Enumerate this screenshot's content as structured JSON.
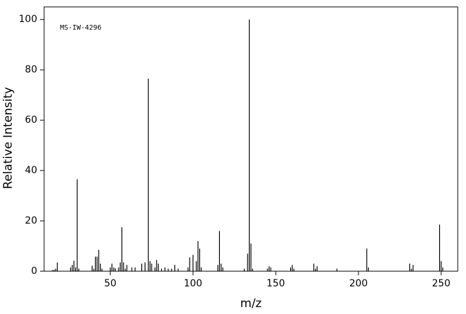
{
  "chart_data": {
    "type": "stem",
    "annotation": "MS-IW-4296",
    "xlabel": "m/z",
    "ylabel": "Relative Intensity",
    "color": "#000000",
    "x": [
      15,
      16,
      17,
      18,
      26,
      27,
      28,
      29,
      30,
      31,
      39,
      40,
      41,
      42,
      43,
      44,
      45,
      50,
      51,
      52,
      53,
      55,
      56,
      57,
      58,
      59,
      60,
      63,
      65,
      69,
      71,
      73,
      74,
      75,
      77,
      78,
      79,
      81,
      83,
      85,
      87,
      89,
      91,
      97,
      98,
      100,
      102,
      103,
      104,
      105,
      115,
      116,
      117,
      118,
      131,
      133,
      134,
      135,
      136,
      145,
      146,
      147,
      159,
      160,
      161,
      173,
      174,
      175,
      187,
      205,
      206,
      231,
      232,
      233,
      249,
      250,
      251
    ],
    "values": [
      0.5,
      0.6,
      1,
      3.5,
      1.5,
      2.5,
      4.2,
      1.5,
      36.5,
      1,
      2.2,
      1,
      5.8,
      5.8,
      8.5,
      3,
      1,
      1.5,
      3,
      1.5,
      1.2,
      1.5,
      3.5,
      17.5,
      3.5,
      1,
      2.5,
      1.5,
      1.5,
      3,
      3.5,
      76.5,
      4,
      3,
      1.5,
      4.5,
      3,
      1,
      1.5,
      1,
      1,
      2.5,
      1,
      1.5,
      5.5,
      6.5,
      4,
      12,
      9,
      1.5,
      2.5,
      16,
      3,
      1.5,
      1,
      7,
      100,
      11,
      1,
      1,
      2,
      1.5,
      1.5,
      2.5,
      1,
      3,
      1,
      2,
      1,
      9,
      1.5,
      3,
      1,
      2.5,
      18.5,
      4,
      1.5
    ],
    "xlim": [
      10,
      260
    ],
    "ylim": [
      0,
      105
    ],
    "xticks": [
      50,
      100,
      150,
      200,
      250
    ],
    "yticks": [
      0,
      20,
      40,
      60,
      80,
      100
    ]
  }
}
